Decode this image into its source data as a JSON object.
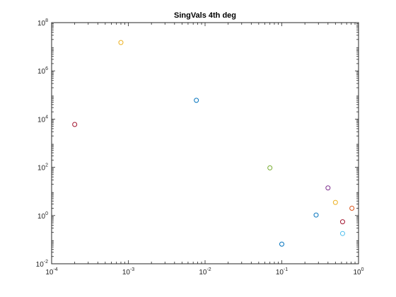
{
  "chart_data": {
    "type": "scatter",
    "title": "SingVals 4th deg",
    "xlabel": "",
    "ylabel": "",
    "xscale": "log",
    "yscale": "log",
    "xlim": [
      0.0001,
      1
    ],
    "ylim": [
      0.01,
      100000000
    ],
    "grid": false,
    "legend": "none",
    "marker": "open-circle",
    "x_ticks": [
      {
        "base": "10",
        "exp": "-4",
        "value": 0.0001
      },
      {
        "base": "10",
        "exp": "-3",
        "value": 0.001
      },
      {
        "base": "10",
        "exp": "-2",
        "value": 0.01
      },
      {
        "base": "10",
        "exp": "-1",
        "value": 0.1
      },
      {
        "base": "10",
        "exp": "0",
        "value": 1
      }
    ],
    "y_ticks": [
      {
        "base": "10",
        "exp": "-2",
        "value": 0.01
      },
      {
        "base": "10",
        "exp": "0",
        "value": 1
      },
      {
        "base": "10",
        "exp": "2",
        "value": 100
      },
      {
        "base": "10",
        "exp": "4",
        "value": 10000
      },
      {
        "base": "10",
        "exp": "6",
        "value": 1000000
      },
      {
        "base": "10",
        "exp": "8",
        "value": 100000000
      }
    ],
    "points": [
      {
        "x": 0.0002,
        "y": 6000,
        "color": "#A2142F"
      },
      {
        "x": 0.0008,
        "y": 15000000,
        "color": "#EDB120"
      },
      {
        "x": 0.0077,
        "y": 60000,
        "color": "#0072BD"
      },
      {
        "x": 0.07,
        "y": 95,
        "color": "#77AC30"
      },
      {
        "x": 0.1,
        "y": 0.065,
        "color": "#0072BD"
      },
      {
        "x": 0.28,
        "y": 1.05,
        "color": "#0072BD"
      },
      {
        "x": 0.4,
        "y": 14,
        "color": "#7E2F8E"
      },
      {
        "x": 0.5,
        "y": 3.5,
        "color": "#EDB120"
      },
      {
        "x": 0.62,
        "y": 0.18,
        "color": "#4DBEEE"
      },
      {
        "x": 0.62,
        "y": 0.55,
        "color": "#A2142F"
      },
      {
        "x": 0.82,
        "y": 2.0,
        "color": "#D95319"
      }
    ]
  }
}
